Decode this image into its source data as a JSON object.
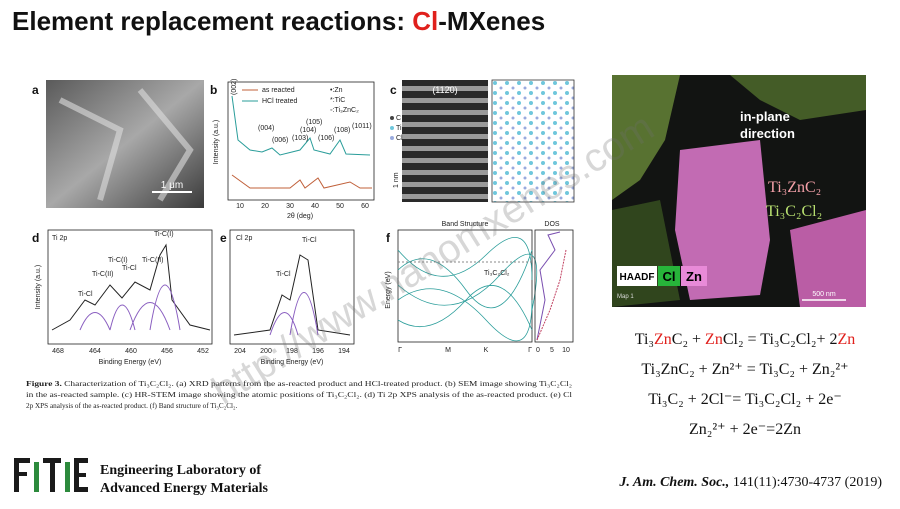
{
  "header": {
    "title_parts": [
      {
        "text": "Element replacement reactions: ",
        "color": "#111111"
      },
      {
        "text": "Cl",
        "color": "#e0201c"
      },
      {
        "text": "-MXenes",
        "color": "#111111"
      }
    ]
  },
  "figure": {
    "a": {
      "label": "a",
      "scale_bar": "1 μm"
    },
    "b": {
      "label": "b",
      "legend": [
        "as reacted",
        "HCl treated"
      ],
      "markers": [
        "•:Zn",
        "*:TiC",
        "◦:Ti₃ZnC₂"
      ],
      "y_axis": "Intensity (a.u.)",
      "x_axis": "2θ (deg)",
      "x_ticks": [
        "10",
        "20",
        "30",
        "40",
        "50",
        "60"
      ],
      "peaks": [
        "(002)",
        "(004)",
        "(006)",
        "(103)",
        "(104)",
        "(105)",
        "(106)",
        "(108)",
        "(1011)"
      ]
    },
    "c": {
      "label": "c",
      "direction": "(112̄0)",
      "legend": [
        "C",
        "Ti",
        "Cl"
      ],
      "scale_bar": "1 nm"
    },
    "d": {
      "label": "d",
      "title": "Ti 2p",
      "peaks": [
        "Ti-Cl",
        "Ti-C(II)",
        "Ti-C(I)",
        "Ti-Cl",
        "Ti-C(II)",
        "Ti-C(I)"
      ],
      "y_axis": "Intensity (a.u.)",
      "x_axis": "Binding Energy (eV)",
      "x_ticks": [
        "468",
        "464",
        "460",
        "456",
        "452"
      ]
    },
    "e": {
      "label": "e",
      "title": "Cl 2p",
      "peaks": [
        "Ti-Cl",
        "Ti-Cl"
      ],
      "x_axis": "Binding Energy (eV)",
      "x_ticks": [
        "204",
        "200",
        "198",
        "196",
        "194"
      ]
    },
    "f": {
      "label": "f",
      "title": "Band Structure",
      "dos_title": "DOS",
      "legend": "Ti₃C₂Cl₂",
      "y_axis": "Energy (eV)",
      "x_ticks": [
        "Γ",
        "M",
        "K",
        "Γ"
      ],
      "dos_ticks": [
        "0",
        "5",
        "10"
      ]
    },
    "caption_label": "Figure 3.",
    "caption_lines": [
      "Characterization of Ti₃C₂Cl₂. (a) XRD patterns from the as-reacted product and HCl-treated product. (b) SEM image showing Ti₃C₂Cl₂",
      "in the as-reacted sample. (c) HR-STEM image showing the atomic positions of Ti₃C₂Cl₂. (d) Ti 2p XPS analysis of the as-reacted product. (e) Cl",
      "2p XPS analysis of the as-reacted product. (f) Band structure of Ti₃C₂Cl₂."
    ]
  },
  "map_image": {
    "direction": [
      "in-plane",
      "direction"
    ],
    "phase_1": "Ti₃ZnC₂",
    "phase_2": "Ti₃C₂Cl₂",
    "channels": [
      "HAADF",
      "Cl",
      "Zn"
    ],
    "map_label": "Map 1",
    "scale_bar": "500 nm"
  },
  "equations": [
    [
      {
        "text": "Ti₃",
        "color": "#111111"
      },
      {
        "text": "Zn",
        "color": "#e0201c"
      },
      {
        "text": "C₂ + ",
        "color": "#111111"
      },
      {
        "text": "Zn",
        "color": "#e0201c"
      },
      {
        "text": "Cl₂ = Ti₃C₂Cl₂+ 2",
        "color": "#111111"
      },
      {
        "text": "Zn",
        "color": "#e0201c"
      }
    ],
    [
      {
        "text": "Ti₃ZnC₂ + Zn²⁺ = Ti₃C₂ + Zn₂²⁺",
        "color": "#111111"
      }
    ],
    [
      {
        "text": "Ti₃C₂ + 2Cl⁻= Ti₃C₂Cl₂ + 2e⁻",
        "color": "#111111"
      }
    ],
    [
      {
        "text": "Zn₂²⁺ + 2e⁻=2Zn",
        "color": "#111111"
      }
    ]
  ],
  "footer": {
    "lab": [
      "Engineering Laboratory of",
      "Advanced Energy Materials"
    ],
    "citation_journal": "J. Am. Chem. Soc.,",
    "citation_rest": " 141(11):4730-4737 (2019)"
  },
  "watermark": "http://www.nanomxenes.com"
}
